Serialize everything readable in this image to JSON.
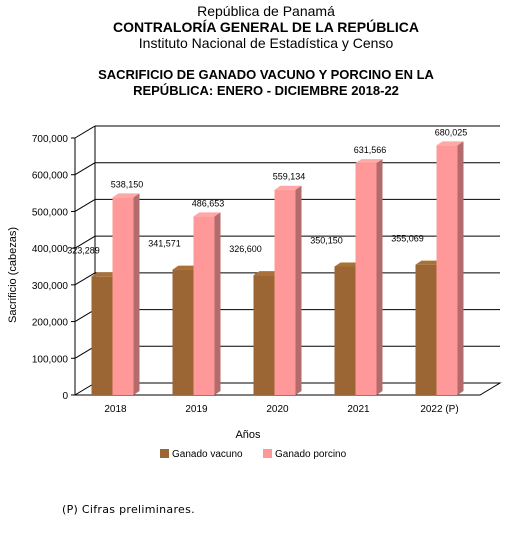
{
  "header": {
    "line1": "República de Panamá",
    "line2": "CONTRALORÍA GENERAL DE LA REPÚBLICA",
    "line3": "Instituto Nacional de Estadística y Censo"
  },
  "chart_data": {
    "type": "bar",
    "title_line1": "SACRIFICIO DE GANADO VACUNO Y PORCINO EN LA",
    "title_line2": "REPÚBLICA: ENERO - DICIEMBRE 2018-22",
    "categories": [
      "2018",
      "2019",
      "2020",
      "2021",
      "2022 (P)"
    ],
    "series": [
      {
        "name": "Ganado vacuno",
        "values": [
          323289,
          341571,
          326600,
          350150,
          355069
        ],
        "labels": [
          "323,289",
          "341,571",
          "326,600",
          "350,150",
          "355,069"
        ],
        "color": "#9b6633"
      },
      {
        "name": "Ganado porcino",
        "values": [
          538150,
          486653,
          559134,
          631566,
          680025
        ],
        "labels": [
          "538,150",
          "486,653",
          "559,134",
          "631,566",
          "680,025"
        ],
        "color": "#ff9999"
      }
    ],
    "xlabel": "Años",
    "ylabel": "Sacrificio (cabezas)",
    "ylim": [
      0,
      700000
    ],
    "yticks": [
      "0",
      "100,000",
      "200,000",
      "300,000",
      "400,000",
      "500,000",
      "600,000",
      "700,000"
    ],
    "grid": true,
    "legend_position": "bottom"
  },
  "footnote": "(P) Cifras preliminares."
}
